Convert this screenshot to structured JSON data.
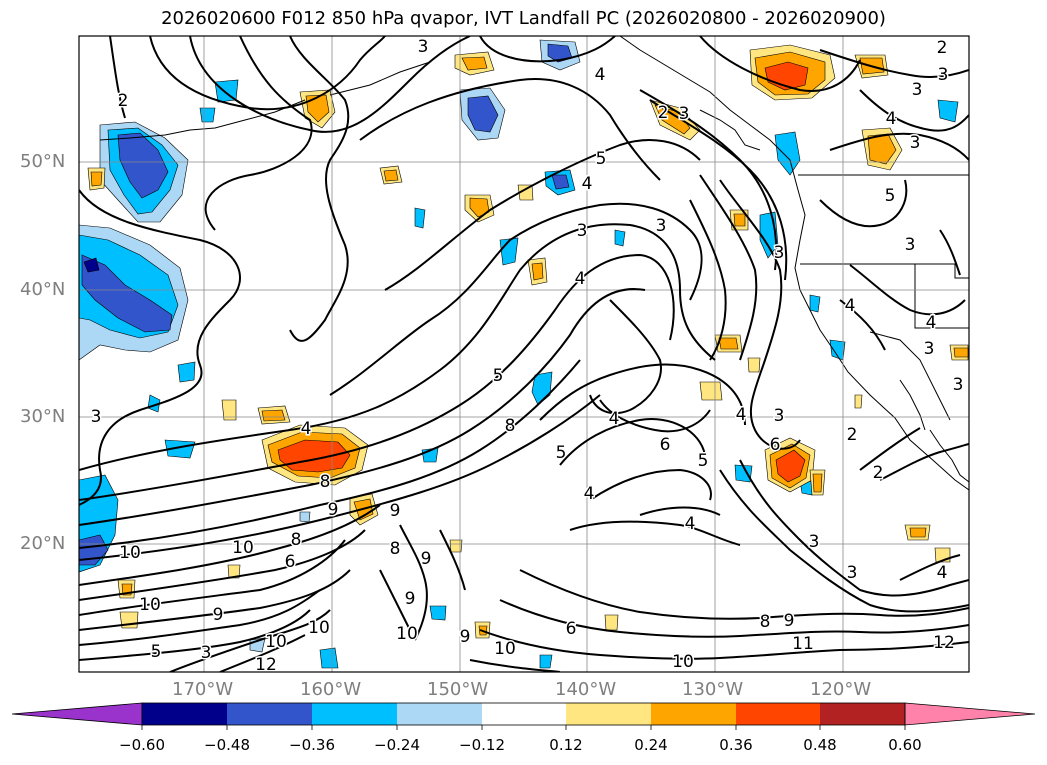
{
  "title": "2026020600 F012 850 hPa qvapor, IVT Landfall PC (2026020800 - 2026020900)",
  "map": {
    "lat_ticks": [
      "50°N",
      "40°N",
      "30°N",
      "20°N"
    ],
    "lon_ticks": [
      "170°W",
      "160°W",
      "150°W",
      "140°W",
      "130°W",
      "120°W"
    ]
  },
  "colorbar": {
    "labels": [
      "−0.60",
      "−0.48",
      "−0.36",
      "−0.24",
      "−0.12",
      "0.12",
      "0.24",
      "0.36",
      "0.48",
      "0.60"
    ],
    "colors": [
      "#9933cc",
      "#00008b",
      "#3355cc",
      "#00bfff",
      "#add8f5",
      "#ffffff",
      "#ffe680",
      "#ffa500",
      "#ff4500",
      "#b22222",
      "#ff82aa"
    ]
  },
  "contour_labels": [
    {
      "text": "2"
    },
    {
      "text": "3"
    },
    {
      "text": "4"
    },
    {
      "text": "3"
    },
    {
      "text": "2"
    },
    {
      "text": "3"
    },
    {
      "text": "4"
    },
    {
      "text": "5"
    },
    {
      "text": "4"
    },
    {
      "text": "3"
    },
    {
      "text": "3"
    },
    {
      "text": "4"
    },
    {
      "text": "3"
    },
    {
      "text": "2"
    },
    {
      "text": "3"
    },
    {
      "text": "4"
    },
    {
      "text": "5"
    },
    {
      "text": "3"
    },
    {
      "text": "4"
    },
    {
      "text": "3"
    },
    {
      "text": "3"
    },
    {
      "text": "8"
    },
    {
      "text": "5"
    },
    {
      "text": "5"
    },
    {
      "text": "4"
    },
    {
      "text": "6"
    },
    {
      "text": "4"
    },
    {
      "text": "4"
    },
    {
      "text": "5"
    },
    {
      "text": "4"
    },
    {
      "text": "6"
    },
    {
      "text": "8"
    },
    {
      "text": "9"
    },
    {
      "text": "9"
    },
    {
      "text": "8"
    },
    {
      "text": "10"
    },
    {
      "text": "10"
    },
    {
      "text": "8"
    },
    {
      "text": "9"
    },
    {
      "text": "6"
    },
    {
      "text": "10"
    },
    {
      "text": "9"
    },
    {
      "text": "10"
    },
    {
      "text": "9"
    },
    {
      "text": "10"
    },
    {
      "text": "9"
    },
    {
      "text": "10"
    },
    {
      "text": "6"
    },
    {
      "text": "10"
    },
    {
      "text": "10"
    },
    {
      "text": "12"
    },
    {
      "text": "5"
    },
    {
      "text": "3"
    },
    {
      "text": "8"
    },
    {
      "text": "9"
    },
    {
      "text": "11"
    },
    {
      "text": "12"
    },
    {
      "text": "3"
    },
    {
      "text": "2"
    },
    {
      "text": "4"
    },
    {
      "text": "3"
    },
    {
      "text": "3"
    },
    {
      "text": "4"
    },
    {
      "text": "2"
    },
    {
      "text": "3"
    },
    {
      "text": "3"
    }
  ]
}
